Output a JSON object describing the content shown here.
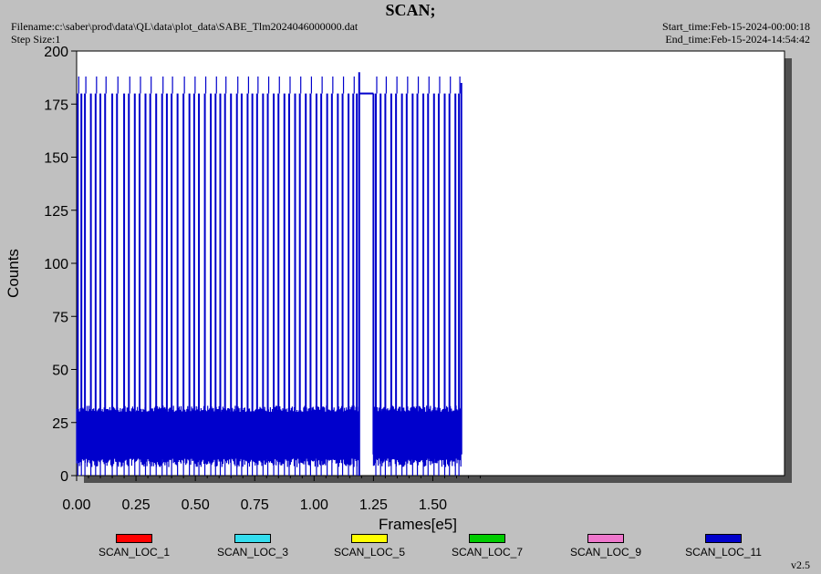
{
  "header": {
    "title": "SCAN;",
    "filename": "Filename:c:\\saber\\prod\\data\\QL\\data\\plot_data\\SABE_Tlm2024046000000.dat",
    "step_size": "Step Size:1",
    "start_time": "Start_time:Feb-15-2024-00:00:18",
    "end_time": "End_time:Feb-15-2024-14:54:42"
  },
  "chart_data": {
    "type": "line",
    "title": "SCAN;",
    "xlabel": "Frames[e5]",
    "ylabel": "Counts",
    "xlim": [
      0.0,
      1.75
    ],
    "ylim": [
      0,
      200
    ],
    "xticks": [
      "0.00",
      "0.25",
      "0.50",
      "0.75",
      "1.00",
      "1.25",
      "1.50"
    ],
    "yticks": [
      "0",
      "25",
      "50",
      "75",
      "100",
      "125",
      "150",
      "175",
      "200"
    ],
    "grid": false,
    "legend_position": "bottom",
    "series": [
      {
        "name": "SCAN_LOC_1",
        "color": "#ff0000",
        "values": []
      },
      {
        "name": "SCAN_LOC_3",
        "color": "#33ddee",
        "values": []
      },
      {
        "name": "SCAN_LOC_5",
        "color": "#ffff00",
        "values": []
      },
      {
        "name": "SCAN_LOC_7",
        "color": "#00cc00",
        "values": []
      },
      {
        "name": "SCAN_LOC_9",
        "color": "#ee77cc",
        "values": []
      },
      {
        "name": "SCAN_LOC_11",
        "color": "#0000cc",
        "band_low": 10,
        "band_high": 30,
        "spike_high": 180,
        "gap_flat_value": 180,
        "gap_start": 1.19,
        "gap_end": 1.25,
        "x_end": 1.62,
        "spike_x": [
          0.005,
          0.02,
          0.035,
          0.06,
          0.08,
          0.1,
          0.12,
          0.15,
          0.17,
          0.2,
          0.22,
          0.245,
          0.265,
          0.29,
          0.31,
          0.335,
          0.36,
          0.38,
          0.4,
          0.425,
          0.45,
          0.475,
          0.495,
          0.515,
          0.54,
          0.565,
          0.585,
          0.605,
          0.625,
          0.65,
          0.675,
          0.695,
          0.72,
          0.74,
          0.76,
          0.785,
          0.805,
          0.83,
          0.85,
          0.875,
          0.895,
          0.92,
          0.94,
          0.965,
          0.985,
          1.01,
          1.03,
          1.055,
          1.075,
          1.1,
          1.12,
          1.145,
          1.165,
          1.18,
          1.26,
          1.28,
          1.3,
          1.325,
          1.345,
          1.37,
          1.39,
          1.415,
          1.435,
          1.46,
          1.48,
          1.505,
          1.525,
          1.55,
          1.57,
          1.595,
          1.61
        ]
      }
    ]
  },
  "footer": {
    "version": "v2.5"
  }
}
